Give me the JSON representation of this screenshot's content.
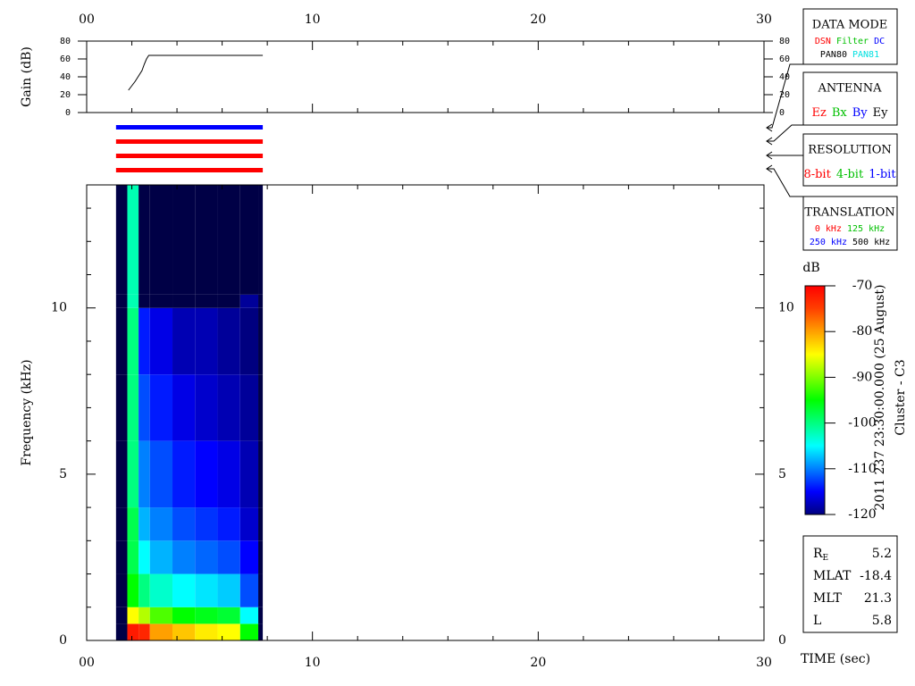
{
  "chart_data": [
    {
      "type": "line",
      "ylabel": "Gain (dB)",
      "xlim": [
        0,
        30
      ],
      "xticks": [
        {
          "value": 0,
          "label": "00"
        },
        10,
        20,
        30
      ],
      "xminorticks": [
        2,
        4,
        6,
        8,
        12,
        14,
        16,
        18,
        22,
        24,
        26,
        28
      ],
      "ylim": [
        0,
        80
      ],
      "yticks": [
        0,
        20,
        40,
        60,
        80
      ],
      "x": [
        1.85,
        2.0,
        2.15,
        2.3,
        2.45,
        2.55,
        2.65,
        2.75,
        7.8
      ],
      "series": [
        {
          "color": "#000000",
          "values": [
            25,
            30,
            35,
            41,
            47,
            54,
            60,
            64,
            64
          ]
        }
      ]
    },
    {
      "type": "status",
      "xlim": [
        0,
        30
      ],
      "rows": [
        {
          "color": "#0000ff",
          "start": 1.3,
          "end": 7.8
        },
        {
          "color": "#ff0000",
          "start": 1.3,
          "end": 7.8
        },
        {
          "color": "#ff0000",
          "start": 1.3,
          "end": 7.8
        },
        {
          "color": "#ff0000",
          "start": 1.3,
          "end": 7.8
        }
      ]
    },
    {
      "type": "heatmap",
      "xlabel": "TIME (sec)",
      "ylabel": "Frequency (kHz)",
      "xlim": [
        0,
        30
      ],
      "xticks": [
        {
          "value": 0,
          "label": "00"
        },
        10,
        20,
        30
      ],
      "xminorticks": [
        2,
        4,
        6,
        8,
        12,
        14,
        16,
        18,
        22,
        24,
        26,
        28
      ],
      "ylim": [
        0,
        13.7
      ],
      "yticks": [
        0,
        5,
        10
      ],
      "yminorticks": [
        1,
        2,
        3,
        4,
        6,
        7,
        8,
        9,
        11,
        12,
        13
      ],
      "x_edges": [
        1.3,
        1.8,
        2.3,
        2.8,
        3.8,
        4.8,
        5.8,
        6.8,
        7.6,
        7.8
      ],
      "y_edges": [
        0,
        0.5,
        1,
        2,
        3,
        4,
        6,
        8,
        10,
        10.4,
        13.7
      ],
      "z": [
        [
          -125,
          -72,
          -73,
          -80,
          -82,
          -84,
          -85,
          -95,
          -125
        ],
        [
          -125,
          -85,
          -88,
          -92,
          -95,
          -96,
          -97,
          -105,
          -125
        ],
        [
          -125,
          -95,
          -100,
          -103,
          -105,
          -106,
          -107,
          -112,
          -125
        ],
        [
          -125,
          -98,
          -105,
          -108,
          -110,
          -111,
          -112,
          -115,
          -125
        ],
        [
          -125,
          -98,
          -108,
          -110,
          -112,
          -113,
          -114,
          -117,
          -125
        ],
        [
          -125,
          -100,
          -110,
          -112,
          -114,
          -115,
          -116,
          -118,
          -125
        ],
        [
          -125,
          -100,
          -112,
          -114,
          -116,
          -117,
          -118,
          -119,
          -125
        ],
        [
          -125,
          -100,
          -114,
          -116,
          -118,
          -118,
          -119,
          -120,
          -125
        ],
        [
          -125,
          -102,
          -125,
          -125,
          -125,
          -125,
          -125,
          -119,
          -125
        ],
        [
          -125,
          -102,
          -125,
          -125,
          -125,
          -125,
          -125,
          -125,
          -125
        ]
      ]
    },
    {
      "type": "colorbar",
      "title": "dB",
      "zlim": [
        -120,
        -70
      ],
      "zticks": [
        -70,
        -80,
        -90,
        -100,
        -110,
        -120
      ],
      "under_color": "#000046",
      "colors": [
        "#000080",
        "#0000ff",
        "#0080ff",
        "#00ffff",
        "#00ff80",
        "#00ff00",
        "#80ff00",
        "#ffff00",
        "#ffa000",
        "#ff4000",
        "#ff0000"
      ]
    }
  ],
  "side_text": [
    "2011 237 23:30:00.000 (25 August)",
    "Cluster - C3"
  ],
  "legend_boxes": [
    {
      "title": "DATA MODE",
      "rows": [
        [
          {
            "text": "DSN",
            "color": "#ff0000"
          },
          {
            "text": "Filter",
            "color": "#00c000"
          },
          {
            "text": "DC",
            "color": "#0000ff"
          }
        ],
        [
          {
            "text": "PAN80",
            "color": "#000000"
          },
          {
            "text": "PAN81",
            "color": "#00e0e0"
          }
        ]
      ]
    },
    {
      "title": "ANTENNA",
      "rows": [
        [
          {
            "text": "Ez",
            "color": "#ff0000"
          },
          {
            "text": "Bx",
            "color": "#00c000"
          },
          {
            "text": "By",
            "color": "#0000ff"
          },
          {
            "text": "Ey",
            "color": "#000000"
          }
        ]
      ]
    },
    {
      "title": "RESOLUTION",
      "rows": [
        [
          {
            "text": "8-bit",
            "color": "#ff0000"
          },
          {
            "text": "4-bit",
            "color": "#00c000"
          },
          {
            "text": "1-bit",
            "color": "#0000ff"
          }
        ]
      ]
    },
    {
      "title": "TRANSLATION",
      "rows": [
        [
          {
            "text": "0 kHz",
            "color": "#ff0000"
          },
          {
            "text": "125 kHz",
            "color": "#00c000"
          }
        ],
        [
          {
            "text": "250 kHz",
            "color": "#0000ff"
          },
          {
            "text": "500 kHz",
            "color": "#000000"
          }
        ]
      ]
    }
  ],
  "info": [
    {
      "label": "R",
      "sub": "E",
      "value": 5.2
    },
    {
      "label": "MLAT",
      "value": -18.4
    },
    {
      "label": "MLT",
      "value": 21.3
    },
    {
      "label": "L",
      "value": 5.8
    }
  ]
}
